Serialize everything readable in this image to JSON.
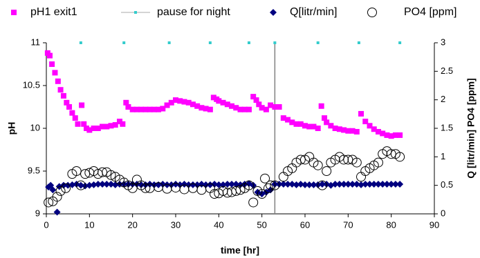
{
  "chart_data": {
    "type": "scatter",
    "xlabel": "time [hr]",
    "ylabel": "pH",
    "y2label": "Q [litr/min] PO4 [ppm]",
    "xlim": [
      0,
      90
    ],
    "xticks": [
      0,
      10,
      20,
      30,
      40,
      50,
      60,
      70,
      80,
      90
    ],
    "ylim": [
      9,
      11
    ],
    "yticks": [
      9,
      9.5,
      10,
      10.5,
      11
    ],
    "y2lim": [
      0,
      3
    ],
    "y2ticks": [
      0,
      0.5,
      1,
      1.5,
      2,
      2.5,
      3
    ],
    "vlines": [
      53
    ],
    "vline_color": "#808080",
    "series": [
      {
        "name": "pH1 exit1",
        "color": "#ff00ff",
        "marker": "square",
        "x": [
          0.3,
          0.8,
          1.3,
          2,
          2.7,
          3.3,
          4,
          4.7,
          5.3,
          6,
          6.7,
          7.3,
          8.2,
          8.7,
          9.3,
          10,
          11,
          12,
          13,
          14,
          15,
          16,
          17,
          17.7,
          18.5,
          19,
          20,
          21,
          22,
          23,
          24,
          25,
          26,
          27,
          28,
          29,
          30,
          31,
          32,
          33,
          34,
          35,
          36,
          37,
          38,
          38.8,
          39.5,
          40,
          41,
          42,
          43,
          44,
          45,
          46,
          47,
          48,
          48.7,
          49.3,
          50,
          51,
          52,
          53,
          54,
          55,
          56,
          57,
          58,
          59,
          60,
          61,
          62,
          63,
          63.8,
          64.5,
          65,
          66,
          67,
          68,
          69,
          70,
          71,
          72,
          73,
          74,
          75,
          76,
          77,
          78,
          79,
          80,
          81,
          82
        ],
        "values": [
          10.88,
          10.85,
          10.75,
          10.65,
          10.55,
          10.45,
          10.38,
          10.3,
          10.25,
          10.18,
          10.12,
          10.05,
          10.27,
          10.05,
          10.0,
          9.98,
          10.0,
          10.0,
          10.02,
          10.02,
          10.03,
          10.04,
          10.08,
          10.05,
          10.3,
          10.25,
          10.22,
          10.22,
          10.22,
          10.22,
          10.22,
          10.22,
          10.22,
          10.23,
          10.27,
          10.3,
          10.33,
          10.32,
          10.31,
          10.3,
          10.28,
          10.26,
          10.24,
          10.23,
          10.22,
          10.36,
          10.34,
          10.32,
          10.3,
          10.28,
          10.26,
          10.24,
          10.22,
          10.22,
          10.22,
          10.37,
          10.33,
          10.28,
          10.24,
          10.22,
          10.27,
          10.25,
          10.25,
          10.12,
          10.1,
          10.07,
          10.05,
          10.05,
          10.03,
          10.02,
          10.02,
          10.0,
          10.26,
          10.12,
          10.07,
          10.03,
          10.0,
          9.99,
          9.98,
          9.97,
          9.97,
          9.96,
          10.17,
          10.08,
          10.03,
          9.99,
          9.96,
          9.94,
          9.92,
          9.91,
          9.92,
          9.92
        ]
      },
      {
        "name": "pause for night",
        "color": "#33cccc",
        "marker": "small-square",
        "x": [
          8,
          18,
          28.5,
          38,
          47,
          53,
          63,
          72.5,
          82
        ],
        "values": [
          11,
          11,
          11,
          11,
          11,
          11,
          11,
          11,
          11
        ]
      },
      {
        "name": "Q[litr/min]",
        "color": "#000080",
        "marker": "diamond",
        "axis": "y2",
        "x": [
          0.5,
          1,
          1.5,
          2.5,
          3,
          4,
          5,
          6,
          7,
          8,
          9,
          10,
          11,
          12,
          13,
          14,
          15,
          16,
          17,
          18,
          19,
          20,
          21,
          22,
          23,
          24,
          25,
          26,
          27,
          28,
          29,
          30,
          31,
          32,
          33,
          34,
          35,
          36,
          37,
          38,
          39,
          40,
          41,
          42,
          43,
          44,
          45,
          46,
          47,
          48,
          49,
          50,
          51,
          52,
          53,
          54,
          55,
          56,
          57,
          58,
          59,
          60,
          61,
          62,
          63,
          64,
          65,
          66,
          67,
          68,
          69,
          70,
          71,
          72,
          73,
          74,
          75,
          76,
          77,
          78,
          79,
          80,
          81,
          82
        ],
        "values": [
          0.47,
          0.5,
          0.42,
          0.03,
          0.48,
          0.5,
          0.5,
          0.51,
          0.52,
          0.5,
          0.49,
          0.5,
          0.51,
          0.52,
          0.52,
          0.52,
          0.52,
          0.51,
          0.52,
          0.52,
          0.52,
          0.52,
          0.52,
          0.51,
          0.51,
          0.52,
          0.51,
          0.51,
          0.52,
          0.51,
          0.51,
          0.52,
          0.51,
          0.52,
          0.51,
          0.51,
          0.51,
          0.52,
          0.51,
          0.51,
          0.52,
          0.51,
          0.51,
          0.52,
          0.52,
          0.52,
          0.51,
          0.52,
          0.53,
          0.5,
          0.38,
          0.35,
          0.38,
          0.42,
          0.52,
          0.52,
          0.52,
          0.52,
          0.52,
          0.51,
          0.52,
          0.51,
          0.51,
          0.51,
          0.51,
          0.52,
          0.52,
          0.5,
          0.52,
          0.52,
          0.52,
          0.52,
          0.52,
          0.52,
          0.51,
          0.52,
          0.52,
          0.52,
          0.52,
          0.52,
          0.52,
          0.52,
          0.52,
          0.52
        ]
      },
      {
        "name": "PO4 [ppm]",
        "color": "#000000",
        "marker": "circle-open",
        "axis": "y2",
        "x": [
          0.5,
          1.5,
          2.5,
          3.3,
          4.5,
          6,
          7,
          8,
          9,
          10,
          11,
          12,
          13,
          14,
          15,
          16,
          17,
          18,
          19,
          20,
          21,
          22,
          23,
          24,
          26,
          28,
          30,
          32,
          34,
          36,
          38,
          39,
          40,
          41,
          42,
          43,
          44,
          45,
          46,
          47,
          48,
          49,
          50,
          50.7,
          51.5,
          52,
          53,
          55,
          56,
          57,
          58,
          59,
          60,
          61,
          62,
          63,
          64,
          65,
          66,
          67,
          68,
          69,
          70,
          71,
          72,
          73,
          74,
          75,
          76,
          77,
          78,
          79,
          80,
          81,
          82
        ],
        "values": [
          0.2,
          0.22,
          0.3,
          0.4,
          0.45,
          0.7,
          0.75,
          0.5,
          0.7,
          0.72,
          0.75,
          0.7,
          0.73,
          0.73,
          0.68,
          0.65,
          0.6,
          0.55,
          0.5,
          0.45,
          0.6,
          0.5,
          0.45,
          0.45,
          0.47,
          0.44,
          0.46,
          0.43,
          0.45,
          0.42,
          0.45,
          0.35,
          0.36,
          0.4,
          0.37,
          0.38,
          0.4,
          0.42,
          0.45,
          0.5,
          0.2,
          0.4,
          0.35,
          0.62,
          0.45,
          0.5,
          0.5,
          0.65,
          0.75,
          0.8,
          0.9,
          0.95,
          0.95,
          1.0,
          0.9,
          0.85,
          0.5,
          0.75,
          0.9,
          0.95,
          1.0,
          0.95,
          0.95,
          0.95,
          0.9,
          0.65,
          0.75,
          0.8,
          0.85,
          0.9,
          1.05,
          1.1,
          1.05,
          1.05,
          1.0
        ]
      }
    ]
  }
}
